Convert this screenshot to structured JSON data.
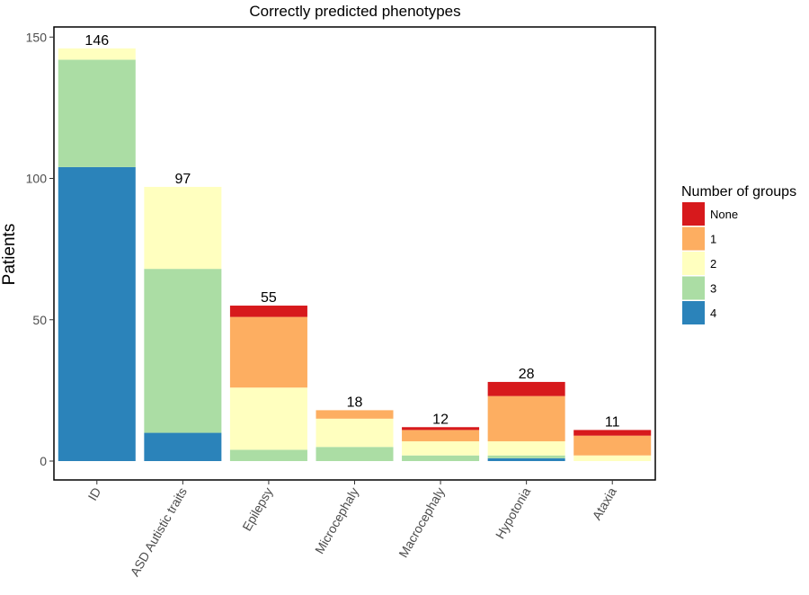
{
  "chart_data": {
    "type": "bar",
    "stacked": true,
    "title": "Correctly predicted phenotypes",
    "xlabel": "",
    "ylabel": "Patients",
    "ylim": [
      0,
      155
    ],
    "yticks": [
      0,
      50,
      100,
      150
    ],
    "grid": false,
    "legend_position": "right",
    "legend_title": "Number of groups",
    "categories": [
      "ID",
      "ASD Autistic traits",
      "Epilepsy",
      "Microcephaly",
      "Macrocephaly",
      "Hypotonia",
      "Ataxia"
    ],
    "totals": [
      146,
      97,
      55,
      18,
      12,
      28,
      11
    ],
    "series": [
      {
        "name": "4",
        "color": "#2b83ba",
        "values": [
          104,
          10,
          0,
          0,
          0,
          1,
          0
        ]
      },
      {
        "name": "3",
        "color": "#abdda4",
        "values": [
          38,
          58,
          4,
          5,
          2,
          1,
          0
        ]
      },
      {
        "name": "2",
        "color": "#ffffbf",
        "values": [
          4,
          29,
          22,
          10,
          5,
          5,
          2
        ]
      },
      {
        "name": "1",
        "color": "#fdae61",
        "values": [
          0,
          0,
          25,
          3,
          4,
          16,
          7
        ]
      },
      {
        "name": "None",
        "color": "#d7191c",
        "values": [
          0,
          0,
          4,
          0,
          1,
          5,
          2
        ]
      }
    ],
    "legend_order": [
      "None",
      "1",
      "2",
      "3",
      "4"
    ]
  }
}
